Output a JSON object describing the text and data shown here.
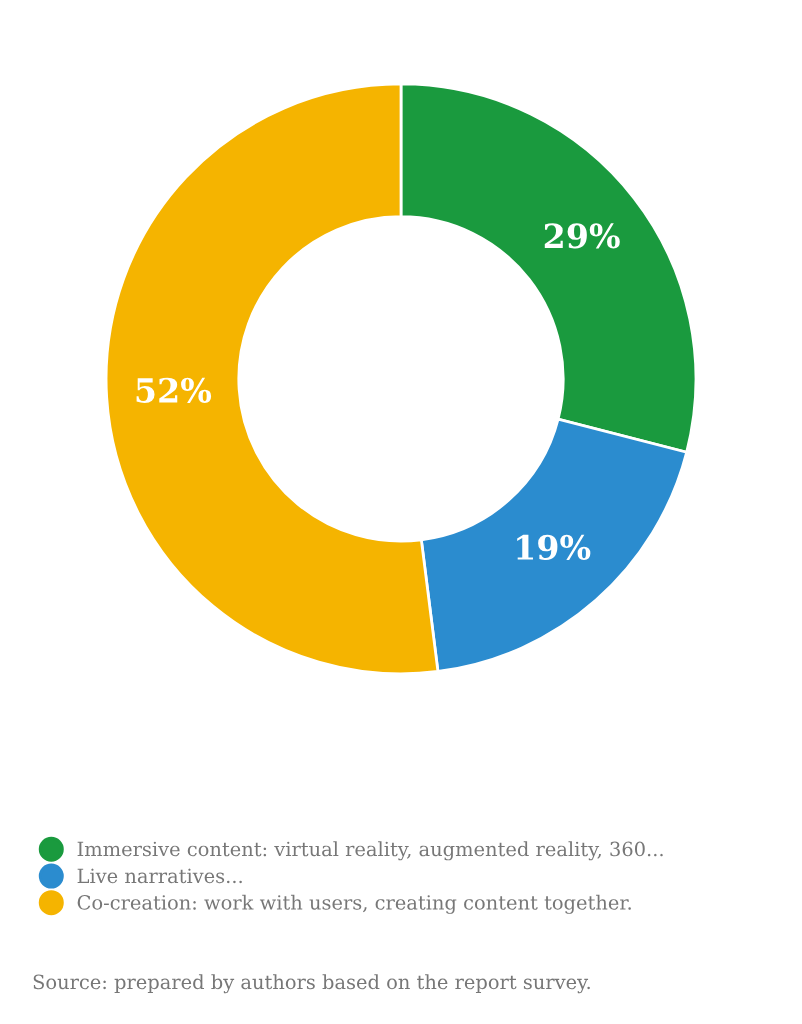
{
  "chart_data": {
    "type": "donut",
    "categories": [
      "Immersive content: virtual reality, augmented reality, 360...",
      "Live narratives...",
      "Co-creation: work with users, creating content together."
    ],
    "values": [
      29,
      19,
      52
    ],
    "colors": [
      "#1a9a3e",
      "#2b8ccf",
      "#f5b400"
    ],
    "value_labels": [
      "29%",
      "19%",
      "52%"
    ],
    "legend": "bottom left",
    "annotations": [
      "Source: prepared by authors based on the report survey."
    ]
  }
}
